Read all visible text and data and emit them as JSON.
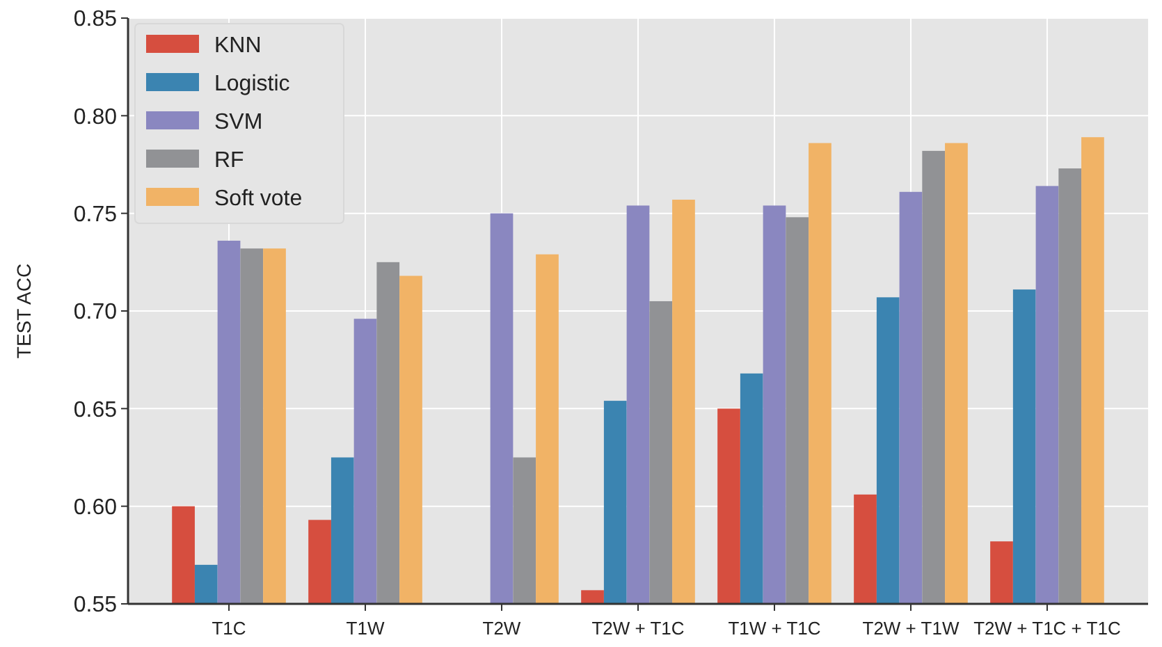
{
  "chart_data": {
    "type": "bar",
    "ylabel": "TEST ACC",
    "categories": [
      "T1C",
      "T1W",
      "T2W",
      "T2W + T1C",
      "T1W + T1C",
      "T2W + T1W",
      "T2W + T1C + T1C"
    ],
    "series": [
      {
        "name": "KNN",
        "color": "#d64e3f",
        "values": [
          0.6,
          0.593,
          null,
          0.557,
          0.65,
          0.606,
          0.582
        ]
      },
      {
        "name": "Logistic",
        "color": "#3b84b1",
        "values": [
          0.57,
          0.625,
          null,
          0.654,
          0.668,
          0.707,
          0.711
        ]
      },
      {
        "name": "SVM",
        "color": "#8a87c0",
        "values": [
          0.736,
          0.696,
          0.75,
          0.754,
          0.754,
          0.761,
          0.764
        ]
      },
      {
        "name": "RF",
        "color": "#919295",
        "values": [
          0.732,
          0.725,
          0.625,
          0.705,
          0.748,
          0.782,
          0.773
        ]
      },
      {
        "name": "Soft vote",
        "color": "#f1b366",
        "values": [
          0.732,
          0.718,
          0.729,
          0.757,
          0.786,
          0.786,
          0.789
        ]
      }
    ],
    "ylim": [
      0.55,
      0.85
    ],
    "yticks": [
      {
        "value": 0.55,
        "label": "0.55"
      },
      {
        "value": 0.6,
        "label": "0.60"
      },
      {
        "value": 0.65,
        "label": "0.65"
      },
      {
        "value": 0.7,
        "label": "0.70"
      },
      {
        "value": 0.75,
        "label": "0.75"
      },
      {
        "value": 0.8,
        "label": "0.80"
      },
      {
        "value": 0.85,
        "label": "0.85"
      }
    ],
    "grid": true,
    "legend": "top left"
  }
}
